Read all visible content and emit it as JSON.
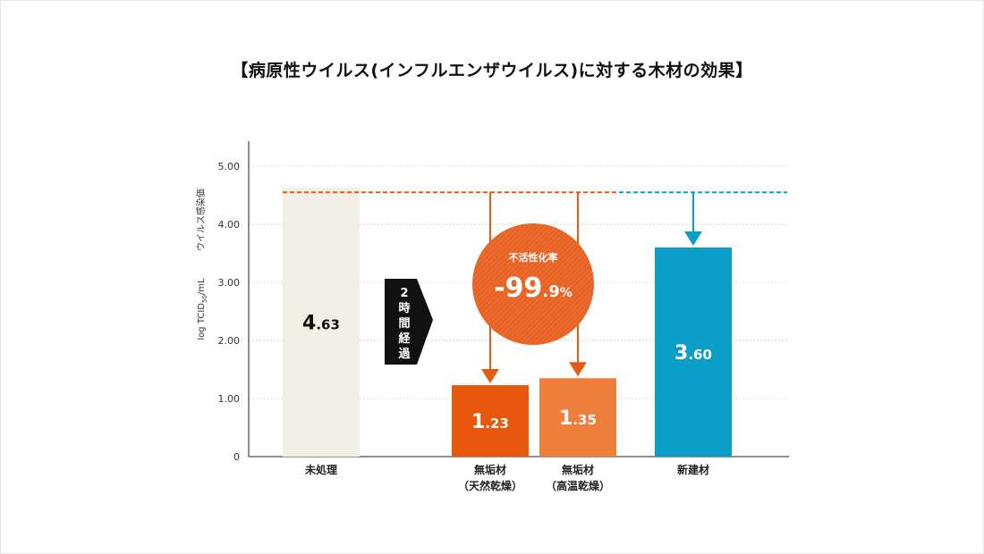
{
  "title": "【病原性ウイルス(インフルエンザウイルス)に対する木材の効果】",
  "chart_data": {
    "type": "bar",
    "ylabel_jp": "ウイルス感染価",
    "ylabel_unit_pre": "log TCID",
    "ylabel_unit_sub": "50",
    "ylabel_unit_post": "/mL",
    "ylim": [
      0,
      5
    ],
    "yticks": [
      "0",
      "1.00",
      "2.00",
      "3.00",
      "4.00",
      "5.00"
    ],
    "grid": true,
    "categories": [
      {
        "label": [
          "未処理"
        ],
        "value": 4.63,
        "int": "4",
        "dec": ".63",
        "color": "#f2efe6",
        "text_color": "#111111",
        "slot": 0
      },
      {
        "label": [
          "無垢材",
          "（天然乾燥）"
        ],
        "value": 1.23,
        "int": "1",
        "dec": ".23",
        "color": "#e8580c",
        "text_color": "#ffffff",
        "slot": 2
      },
      {
        "label": [
          "無垢材",
          "（高温乾燥）"
        ],
        "value": 1.35,
        "int": "1",
        "dec": ".35",
        "color": "#f07f3c",
        "text_color": "#ffffff",
        "slot": 3
      },
      {
        "label": [
          "新建材"
        ],
        "value": 3.6,
        "int": "3",
        "dec": ".60",
        "color": "#0b9ec6",
        "text_color": "#ffffff",
        "slot": 4
      }
    ],
    "reference_line": 4.55,
    "annotation_arrow": "2時間経過",
    "badge": {
      "label": "不活性化率",
      "value_main": "-99",
      "value_dec": ".9",
      "value_unit": "%",
      "color": "#ec6a2c"
    },
    "colors": {
      "orange_line": "#e35b14",
      "blue_line": "#0b9ec6",
      "arrow_dark": "#111111"
    }
  }
}
